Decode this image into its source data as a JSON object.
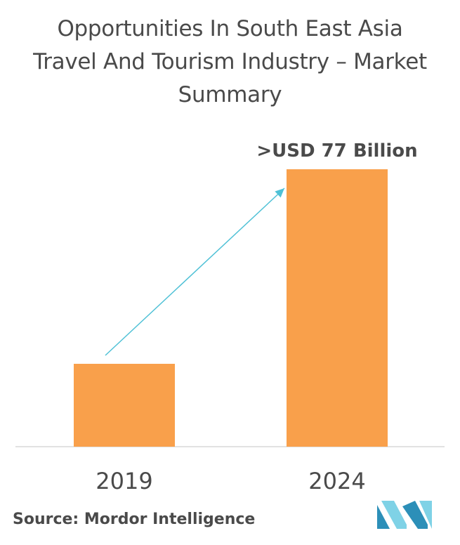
{
  "title": "Opportunities In South East Asia Travel And Tourism Industry – Market Summary",
  "source": "Source: Mordor Intelligence",
  "colors": {
    "bar": "#f9a04b",
    "arrow": "#4fc1d6",
    "text": "#4a4a4a",
    "logo_dark": "#2c8fb8",
    "logo_light": "#7fd2e6"
  },
  "logo_icon": "mordor-intelligence-logo",
  "chart_data": {
    "type": "bar",
    "categories": [
      "2019",
      "2024"
    ],
    "values": [
      23,
      77
    ],
    "data_labels": [
      "",
      ">USD 77 Billion"
    ],
    "title": "",
    "xlabel": "",
    "ylabel": "",
    "ylim": [
      0,
      77
    ],
    "grid": false,
    "trend_arrow": true
  }
}
